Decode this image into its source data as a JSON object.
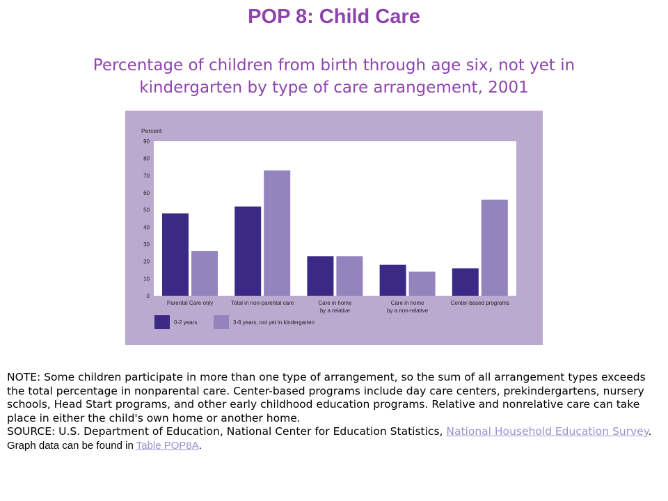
{
  "slide": {
    "title": "POP 8: Child Care",
    "subtitle": "Percentage of children from birth through age six, not yet in kindergarten by type of care arrangement, 2001"
  },
  "colors": {
    "panel": "#baaad0",
    "plot_bg": "#ffffff",
    "series_0_2": "#3b2a85",
    "series_3_6": "#9384bd",
    "title": "#8e44ad",
    "link": "#9d8fd1"
  },
  "chart_data": {
    "type": "bar",
    "title": "",
    "xlabel": "",
    "ylabel": "Percent",
    "ylim": [
      0,
      90
    ],
    "yticks": [
      0,
      10,
      20,
      30,
      40,
      50,
      60,
      70,
      80,
      90
    ],
    "grid": false,
    "legend_position": "bottom-left",
    "categories": [
      [
        "Parental Care only"
      ],
      [
        "Total in non-parental care"
      ],
      [
        "Care in home",
        "by a relative"
      ],
      [
        "Care in home",
        "by a non-relative"
      ],
      [
        "Center-based programs"
      ]
    ],
    "series": [
      {
        "name": "0-2 years",
        "values": [
          48,
          52,
          23,
          18,
          16
        ]
      },
      {
        "name": "3-6 years, not yet in kindergarten",
        "values": [
          26,
          73,
          23,
          14,
          56
        ]
      }
    ]
  },
  "notes": {
    "note": "NOTE: Some children participate in more than one type of arrangement, so the sum of all arrangement types exceeds the total percentage in nonparental care. Center-based programs include day care centers, prekindergartens, nursery schools, Head Start programs, and other early childhood education programs. Relative and nonrelative care can take place in either the child's own home or another home.",
    "source_prefix": "SOURCE: U.S. Department of Education, National Center for Education Statistics, ",
    "source_link": "National Household Education Survey",
    "source_suffix": ".",
    "graph_prefix": "Graph data can be found in ",
    "graph_link": "Table POP8A",
    "graph_suffix": "."
  }
}
